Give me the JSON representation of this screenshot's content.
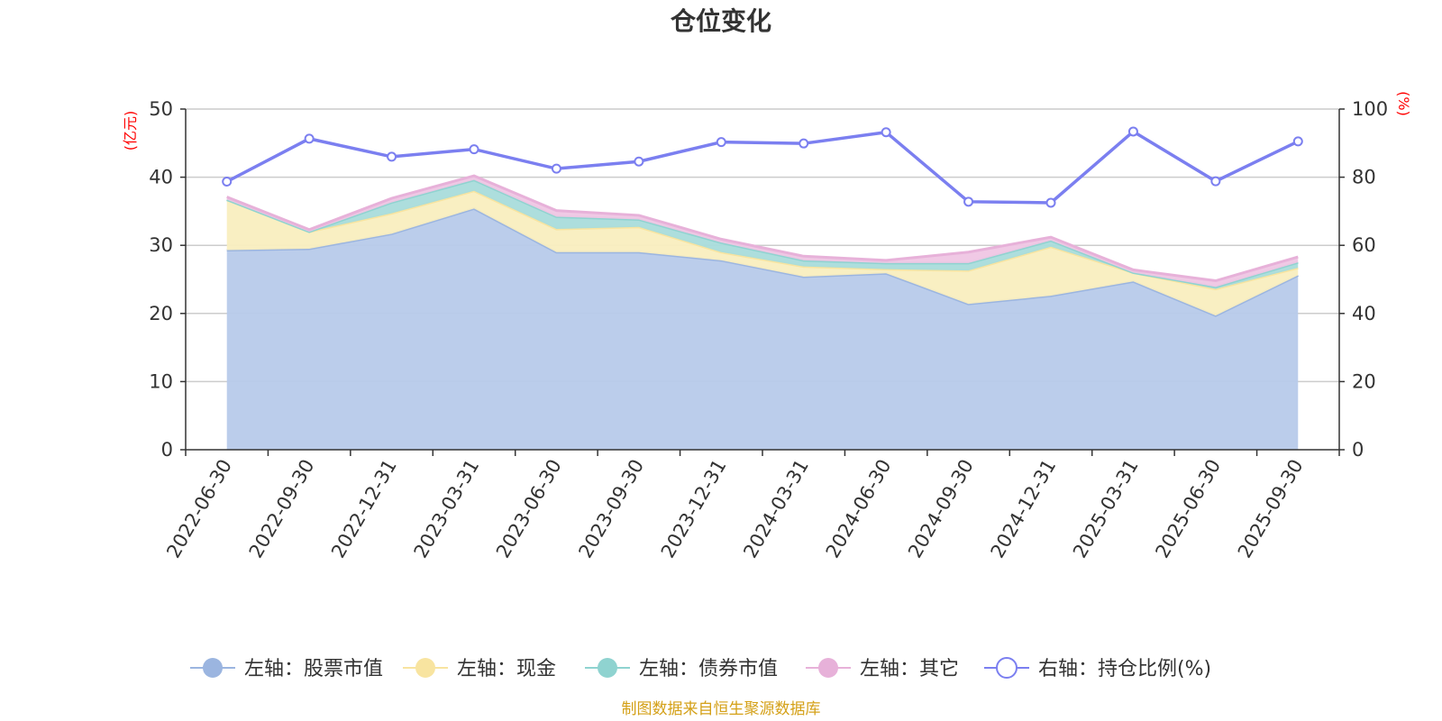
{
  "chart_data": {
    "type": "area",
    "title": "仓位变化",
    "left_unit": "(亿元)",
    "right_unit": "(%)",
    "categories": [
      "2022-06-30",
      "2022-09-30",
      "2022-12-31",
      "2023-03-31",
      "2023-06-30",
      "2023-09-30",
      "2023-12-31",
      "2024-03-31",
      "2024-06-30",
      "2024-09-30",
      "2024-12-31",
      "2025-03-31",
      "2025-06-30",
      "2025-09-30"
    ],
    "left_axis": {
      "min": 0,
      "max": 50,
      "ticks": [
        0,
        10,
        20,
        30,
        40,
        50
      ]
    },
    "right_axis": {
      "min": 0,
      "max": 100,
      "ticks": [
        0,
        20,
        40,
        60,
        80,
        100
      ]
    },
    "stacked_series": [
      {
        "name": "左轴：股票市值",
        "color": "#9bb5e0",
        "fill": "#b7caea",
        "values": [
          29.3,
          29.5,
          31.7,
          35.4,
          29.0,
          29.0,
          27.8,
          25.4,
          25.9,
          21.4,
          22.6,
          24.7,
          19.7,
          25.6
        ]
      },
      {
        "name": "左轴：现金",
        "color": "#f8e4a0",
        "fill": "#f9eebf",
        "values": [
          7.4,
          2.5,
          3.0,
          2.6,
          3.4,
          3.7,
          1.2,
          1.5,
          0.6,
          4.9,
          7.2,
          1.3,
          3.9,
          1.1
        ]
      },
      {
        "name": "左轴：债券市值",
        "color": "#8fd3d0",
        "fill": "#a9dcdb",
        "values": [
          0.0,
          0.0,
          1.6,
          1.6,
          1.8,
          1.1,
          1.4,
          0.9,
          0.9,
          1.1,
          0.9,
          0.0,
          0.3,
          0.8
        ]
      },
      {
        "name": "左轴：其它",
        "color": "#e7b1d9",
        "fill": "#efc6e4",
        "values": [
          0.4,
          0.3,
          0.6,
          0.6,
          0.9,
          0.6,
          0.5,
          0.6,
          0.4,
          1.6,
          0.5,
          0.4,
          0.9,
          0.8
        ]
      }
    ],
    "line_series": {
      "name": "右轴：持仓比例(%)",
      "color": "#7b7ff0",
      "values": [
        78.7,
        91.3,
        86.0,
        88.2,
        82.5,
        84.6,
        90.3,
        89.9,
        93.2,
        72.8,
        72.5,
        93.4,
        78.8,
        90.5
      ]
    },
    "grid": true,
    "legend_position": "bottom"
  },
  "footer": {
    "source": "制图数据来自恒生聚源数据库"
  }
}
